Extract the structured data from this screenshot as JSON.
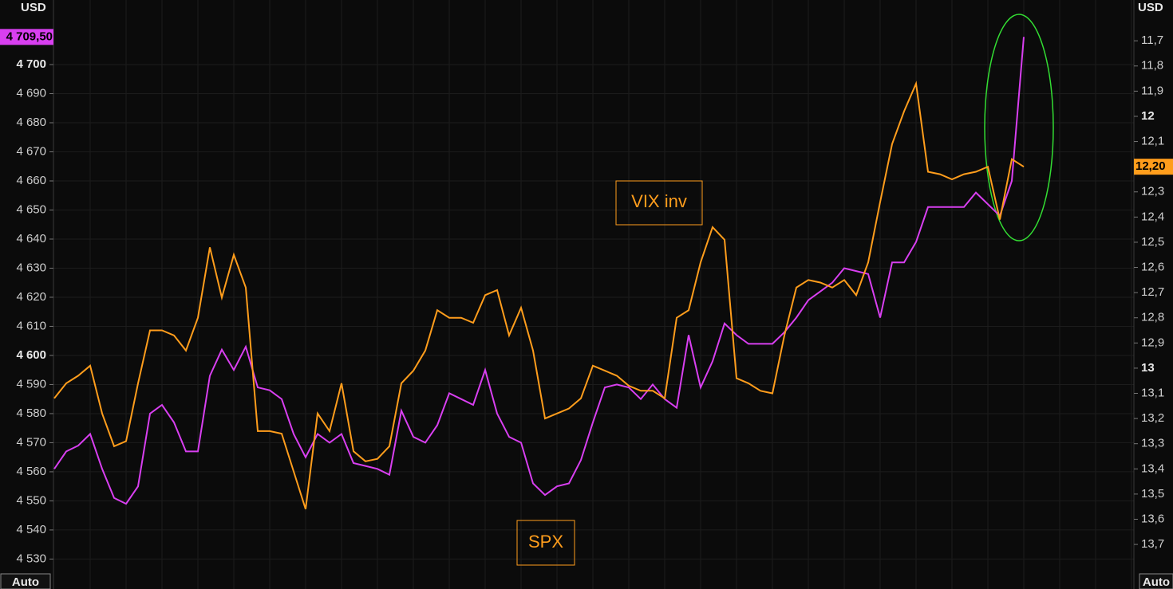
{
  "chart_data": {
    "type": "line",
    "y_unit": "USD",
    "y2_unit": "USD",
    "y_mode": "Auto",
    "y2_mode": "Auto",
    "ylim": [
      4519.7,
      4722.2
    ],
    "yticks": [
      {
        "value": 4530,
        "label": "4 530"
      },
      {
        "value": 4540,
        "label": "4 540"
      },
      {
        "value": 4550,
        "label": "4 550"
      },
      {
        "value": 4560,
        "label": "4 560"
      },
      {
        "value": 4570,
        "label": "4 570"
      },
      {
        "value": 4580,
        "label": "4 580"
      },
      {
        "value": 4590,
        "label": "4 590"
      },
      {
        "value": 4600,
        "label": "4 600"
      },
      {
        "value": 4610,
        "label": "4 610"
      },
      {
        "value": 4620,
        "label": "4 620"
      },
      {
        "value": 4630,
        "label": "4 630"
      },
      {
        "value": 4640,
        "label": "4 640"
      },
      {
        "value": 4650,
        "label": "4 650"
      },
      {
        "value": 4660,
        "label": "4 660"
      },
      {
        "value": 4670,
        "label": "4 670"
      },
      {
        "value": 4680,
        "label": "4 680"
      },
      {
        "value": 4690,
        "label": "4 690"
      },
      {
        "value": 4700,
        "label": "4 700"
      }
    ],
    "y2lim": [
      11.538,
      13.877
    ],
    "y2_inverted": true,
    "y2ticks": [
      {
        "value": 11.7,
        "label": "11,7"
      },
      {
        "value": 11.8,
        "label": "11,8"
      },
      {
        "value": 11.9,
        "label": "11,9"
      },
      12,
      {
        "value": 12.1,
        "label": "12,1"
      },
      {
        "value": 12.2,
        "label": "12,2"
      },
      {
        "value": 12.3,
        "label": "12,3"
      },
      {
        "value": 12.4,
        "label": "12,4"
      },
      {
        "value": 12.5,
        "label": "12,5"
      },
      {
        "value": 12.6,
        "label": "12,6"
      },
      {
        "value": 12.7,
        "label": "12,7"
      },
      {
        "value": 12.8,
        "label": "12,8"
      },
      {
        "value": 12.9,
        "label": "12,9"
      },
      13,
      {
        "value": 13.1,
        "label": "13,1"
      },
      {
        "value": 13.2,
        "label": "13,2"
      },
      {
        "value": 13.3,
        "label": "13,3"
      },
      {
        "value": 13.4,
        "label": "13,4"
      },
      {
        "value": 13.5,
        "label": "13,5"
      },
      {
        "value": 13.6,
        "label": "13,6"
      },
      {
        "value": 13.7,
        "label": "13,7"
      }
    ],
    "grid": true,
    "series": [
      {
        "name": "SPX",
        "color": "#d83ff0",
        "axis": "y",
        "last_value": 4709.5,
        "last_label": "4 709,50",
        "values": [
          4561,
          4567,
          4569,
          4573,
          4561,
          4551,
          4549,
          4555,
          4580,
          4583,
          4577,
          4567,
          4567,
          4593,
          4602,
          4595,
          4603,
          4589,
          4588,
          4585,
          4573,
          4565,
          4573,
          4570,
          4573,
          4563,
          4562,
          4561,
          4559,
          4581,
          4572,
          4570,
          4576,
          4587,
          4585,
          4583,
          4595,
          4580,
          4572,
          4570,
          4556,
          4552,
          4555,
          4556,
          4564,
          4577,
          4589,
          4590,
          4589,
          4585,
          4590,
          4585,
          4582,
          4607,
          4589,
          4598,
          4611,
          4607,
          4604,
          4604,
          4604,
          4608,
          4613,
          4619,
          4622,
          4625,
          4630,
          4629,
          4628,
          4613,
          4632,
          4632,
          4639,
          4651,
          4651,
          4651,
          4651,
          4656,
          4652,
          4648,
          4660,
          4709.5
        ]
      },
      {
        "name": "VIX inv",
        "color": "#ff9d1c",
        "axis": "y2",
        "last_value": 12.2,
        "last_label": "12,20",
        "values": [
          13.12,
          13.06,
          13.03,
          12.99,
          13.18,
          13.31,
          13.29,
          13.06,
          12.85,
          12.85,
          12.87,
          12.93,
          12.8,
          12.52,
          12.72,
          12.55,
          12.68,
          13.25,
          13.25,
          13.26,
          13.41,
          13.56,
          13.18,
          13.25,
          13.06,
          13.33,
          13.37,
          13.36,
          13.31,
          13.06,
          13.01,
          12.93,
          12.77,
          12.8,
          12.8,
          12.82,
          12.71,
          12.69,
          12.87,
          12.76,
          12.93,
          13.2,
          13.18,
          13.16,
          13.12,
          12.99,
          13.01,
          13.03,
          13.07,
          13.09,
          13.09,
          13.12,
          12.8,
          12.77,
          12.58,
          12.44,
          12.49,
          13.04,
          13.06,
          13.09,
          13.1,
          12.87,
          12.68,
          12.65,
          12.66,
          12.68,
          12.65,
          12.71,
          12.58,
          12.34,
          12.11,
          11.98,
          11.87,
          12.22,
          12.23,
          12.25,
          12.23,
          12.22,
          12.2,
          12.41,
          12.17,
          12.2
        ]
      }
    ]
  }
}
